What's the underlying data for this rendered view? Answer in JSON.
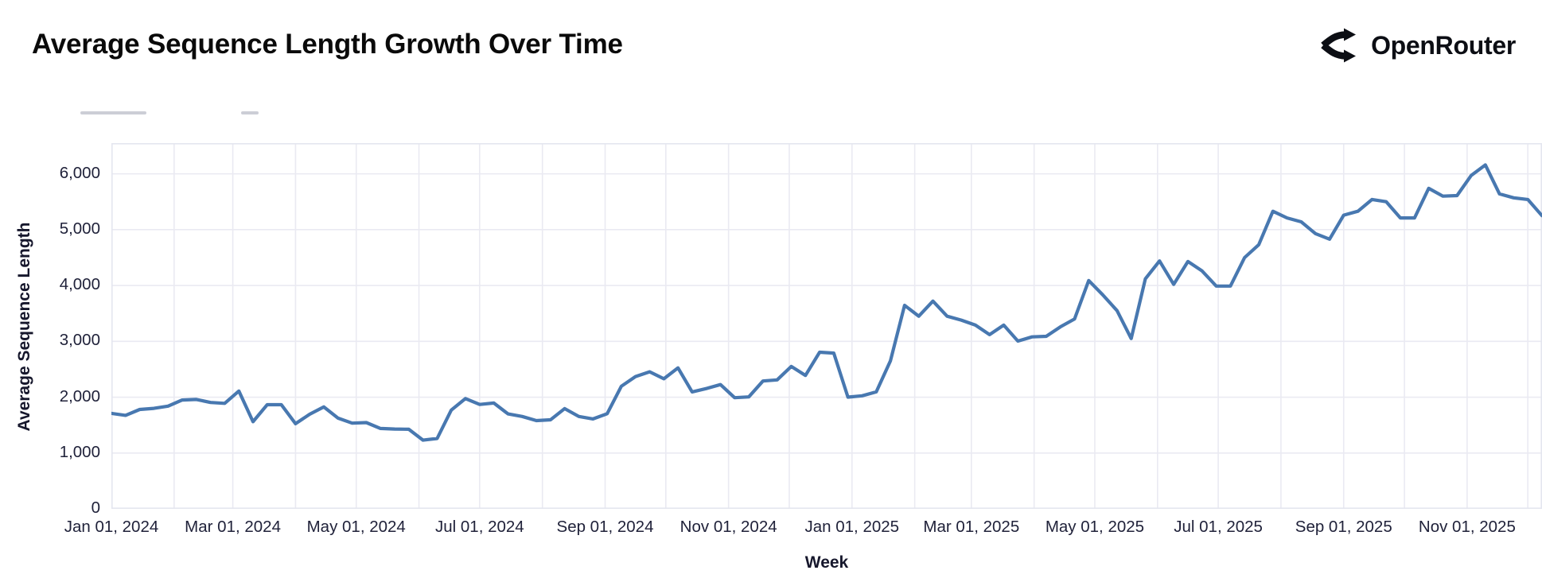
{
  "header": {
    "title": "Average Sequence Length Growth Over Time",
    "brand": "OpenRouter"
  },
  "colors": {
    "background": "#ffffff",
    "grid": "#eaeaf2",
    "plot_border": "#e4e6ef",
    "line": "#4878b0",
    "axis_text": "#20223a",
    "title_text": "#0a0a0a",
    "brand_text": "#0c0e14"
  },
  "chart_data": {
    "type": "line",
    "title": "Average Sequence Length Growth Over Time",
    "xlabel": "Week",
    "ylabel": "Average Sequence Length",
    "grid": true,
    "legend_position": "none",
    "ylim": [
      0,
      6550
    ],
    "y_ticks": [
      0,
      1000,
      2000,
      3000,
      4000,
      5000,
      6000
    ],
    "x_start_date": "2024-01-01",
    "x_step_days": 7,
    "x_ticks": [
      {
        "label": "Jan 01, 2024",
        "date": "2024-01-01"
      },
      {
        "label": "Mar 01, 2024",
        "date": "2024-03-01"
      },
      {
        "label": "May 01, 2024",
        "date": "2024-05-01"
      },
      {
        "label": "Jul 01, 2024",
        "date": "2024-07-01"
      },
      {
        "label": "Sep 01, 2024",
        "date": "2024-09-01"
      },
      {
        "label": "Nov 01, 2024",
        "date": "2024-11-01"
      },
      {
        "label": "Jan 01, 2025",
        "date": "2025-01-01"
      },
      {
        "label": "Mar 01, 2025",
        "date": "2025-03-01"
      },
      {
        "label": "May 01, 2025",
        "date": "2025-05-01"
      },
      {
        "label": "Jul 01, 2025",
        "date": "2025-07-01"
      },
      {
        "label": "Sep 01, 2025",
        "date": "2025-09-01"
      },
      {
        "label": "Nov 01, 2025",
        "date": "2025-11-01"
      }
    ],
    "series": [
      {
        "name": "Average Sequence Length",
        "color": "#4878b0",
        "values": [
          1710,
          1675,
          1780,
          1800,
          1840,
          1950,
          1960,
          1905,
          1890,
          2110,
          1560,
          1865,
          1865,
          1525,
          1695,
          1825,
          1625,
          1535,
          1545,
          1440,
          1430,
          1425,
          1230,
          1260,
          1770,
          1975,
          1870,
          1895,
          1700,
          1655,
          1580,
          1595,
          1795,
          1655,
          1610,
          1705,
          2195,
          2370,
          2455,
          2330,
          2525,
          2095,
          2155,
          2225,
          1990,
          2005,
          2290,
          2310,
          2550,
          2390,
          2805,
          2790,
          2000,
          2025,
          2095,
          2650,
          3645,
          3450,
          3720,
          3450,
          3380,
          3290,
          3120,
          3290,
          3005,
          3080,
          3090,
          3260,
          3400,
          4090,
          3830,
          3550,
          3050,
          4120,
          4440,
          4020,
          4430,
          4260,
          3990,
          3990,
          4500,
          4730,
          5330,
          5210,
          5140,
          4930,
          4830,
          5260,
          5330,
          5540,
          5500,
          5210,
          5210,
          5740,
          5600,
          5610,
          5970,
          6160,
          5640,
          5570,
          5540,
          5250
        ]
      }
    ]
  }
}
